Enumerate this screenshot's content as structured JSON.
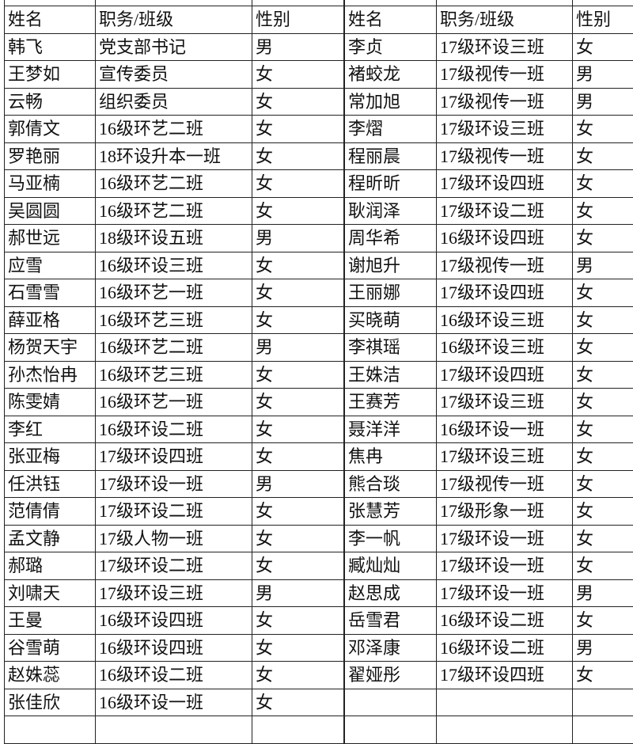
{
  "headers": [
    "姓名",
    "职务/班级",
    "性别"
  ],
  "left_table": [
    [
      "韩飞",
      "党支部书记",
      "男"
    ],
    [
      "王梦如",
      "宣传委员",
      "女"
    ],
    [
      "云畅",
      "组织委员",
      "女"
    ],
    [
      "郭倩文",
      "16级环艺二班",
      "女"
    ],
    [
      "罗艳丽",
      "18环设升本一班",
      "女"
    ],
    [
      "马亚楠",
      "16级环艺二班",
      "女"
    ],
    [
      "吴圆圆",
      "16级环艺二班",
      "女"
    ],
    [
      "郝世远",
      "18级环设五班",
      "男"
    ],
    [
      "应雪",
      "16级环设三班",
      "女"
    ],
    [
      "石雪雪",
      "16级环艺一班",
      "女"
    ],
    [
      "薛亚格",
      "16级环艺三班",
      "女"
    ],
    [
      "杨贺天宇",
      "16级环艺二班",
      "男"
    ],
    [
      "孙杰怡冉",
      "16级环艺三班",
      "女"
    ],
    [
      "陈雯婧",
      "16级环艺一班",
      "女"
    ],
    [
      "李红",
      "16级环设二班",
      "女"
    ],
    [
      "张亚梅",
      "17级环设四班",
      "女"
    ],
    [
      "任洪钰",
      "17级环设一班",
      "男"
    ],
    [
      "范倩倩",
      "17级环设二班",
      "女"
    ],
    [
      "孟文静",
      "17级人物一班",
      "女"
    ],
    [
      "郝璐",
      "17级环设二班",
      "女"
    ],
    [
      "刘啸天",
      "17级环设三班",
      "男"
    ],
    [
      "王曼",
      "16级环设四班",
      "女"
    ],
    [
      "谷雪萌",
      "16级环设四班",
      "女"
    ],
    [
      "赵姝蕊",
      "16级环设二班",
      "女"
    ],
    [
      "张佳欣",
      "16级环设一班",
      "女"
    ]
  ],
  "right_table": [
    [
      "李贞",
      "17级环设三班",
      "女"
    ],
    [
      "褚蛟龙",
      "17级视传一班",
      "男"
    ],
    [
      "常加旭",
      "17级视传一班",
      "男"
    ],
    [
      "李熠",
      "17级环设三班",
      "女"
    ],
    [
      "程丽晨",
      "17级视传一班",
      "女"
    ],
    [
      "程昕昕",
      "17级环设四班",
      "女"
    ],
    [
      "耿润泽",
      "17级环设二班",
      "女"
    ],
    [
      "周华希",
      "16级环设四班",
      "女"
    ],
    [
      "谢旭升",
      "17级视传一班",
      "男"
    ],
    [
      "王丽娜",
      "17级环设四班",
      "女"
    ],
    [
      "买晓萌",
      "16级环设三班",
      "女"
    ],
    [
      "李祺瑶",
      "16级环设三班",
      "女"
    ],
    [
      "王姝洁",
      "17级环设四班",
      "女"
    ],
    [
      "王赛芳",
      "17级环设三班",
      "女"
    ],
    [
      "聂洋洋",
      "16级环设一班",
      "女"
    ],
    [
      "焦冉",
      "17级环设三班",
      "女"
    ],
    [
      "熊合琰",
      "17级视传一班",
      "女"
    ],
    [
      "张慧芳",
      "17级形象一班",
      "女"
    ],
    [
      "李一帆",
      "17级环设一班",
      "女"
    ],
    [
      "臧灿灿",
      "17级环设一班",
      "女"
    ],
    [
      "赵思成",
      "17级环设一班",
      "男"
    ],
    [
      "岳雪君",
      "16级环设二班",
      "女"
    ],
    [
      "邓泽康",
      "16级环设二班",
      "男"
    ],
    [
      "翟娅彤",
      "17级环设四班",
      "女"
    ]
  ]
}
